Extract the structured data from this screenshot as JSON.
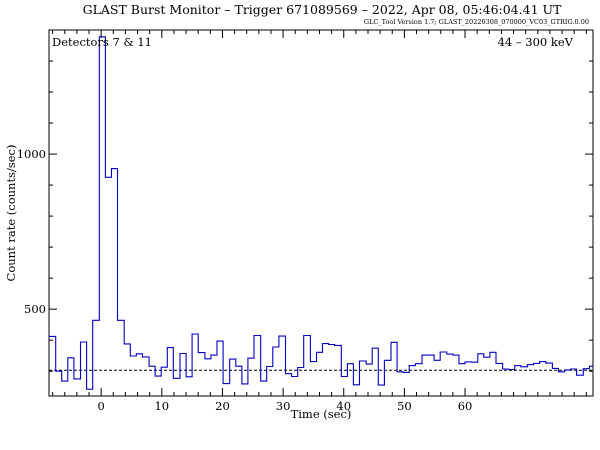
{
  "chart_data": {
    "type": "line",
    "title": "GLAST Burst Monitor  –  Trigger 671089569  –  2022, Apr 08, 05:46:04.41 UT",
    "subtitle": "GLC_Tool Version 1.7; GLAST_20220308_070000_VC03_GTRIG.0.00",
    "annotation_left": "Detectors 7 & 11",
    "annotation_right": "44 – 300 keV",
    "xlabel": "Time (sec)",
    "ylabel": "Count rate (counts/sec)",
    "xlim": [
      -8.6,
      81.1
    ],
    "ylim": [
      220,
      1400
    ],
    "xticks": [
      0,
      10,
      20,
      30,
      40,
      50,
      60
    ],
    "yticks": [
      500,
      1000
    ],
    "background_level": 303,
    "bin_width": 1.024,
    "step_edges": [
      -8.6,
      -7.5,
      -6.5,
      -5.5,
      -4.5,
      -3.4,
      -2.4,
      -1.4,
      -0.3,
      0.7,
      1.7,
      2.7,
      3.8,
      4.8,
      5.8,
      6.8,
      7.9,
      8.9,
      9.9,
      10.9,
      11.9,
      13.0,
      14.0,
      15.0,
      16.0,
      17.1,
      18.1,
      19.1,
      20.1,
      21.2,
      22.2,
      23.2,
      24.2,
      25.2,
      26.3,
      27.3,
      28.3,
      29.3,
      30.4,
      31.4,
      32.4,
      33.4,
      34.5,
      35.5,
      36.5,
      37.5,
      38.5,
      39.6,
      40.6,
      41.6,
      42.6,
      43.7,
      44.7,
      45.7,
      46.7,
      47.8,
      48.8,
      49.8,
      50.8,
      51.8,
      52.9,
      53.9,
      54.9,
      55.9,
      57.0,
      58.0,
      59.0,
      60.0,
      61.1,
      62.1,
      63.1,
      64.1,
      65.1,
      66.2,
      67.2,
      68.2,
      69.2,
      70.3,
      71.3,
      72.3,
      73.3,
      74.4,
      75.4,
      76.4,
      77.4,
      78.4,
      79.5,
      80.5,
      81.1
    ],
    "step_values": [
      412,
      300,
      268,
      343,
      275,
      394,
      242,
      464,
      1378,
      925,
      953,
      464,
      388,
      349,
      356,
      346,
      316,
      284,
      313,
      376,
      277,
      357,
      282,
      420,
      360,
      340,
      352,
      397,
      260,
      339,
      316,
      259,
      342,
      415,
      268,
      315,
      378,
      413,
      292,
      283,
      312,
      415,
      331,
      361,
      389,
      386,
      383,
      283,
      324,
      256,
      333,
      323,
      374,
      255,
      335,
      393,
      298,
      296,
      318,
      324,
      352,
      352,
      335,
      362,
      355,
      352,
      324,
      330,
      329,
      356,
      345,
      361,
      325,
      307,
      305,
      318,
      314,
      321,
      325,
      331,
      326,
      309,
      298,
      304,
      307,
      287,
      308,
      316
    ],
    "series_color": "#0000c8",
    "grid": false
  }
}
